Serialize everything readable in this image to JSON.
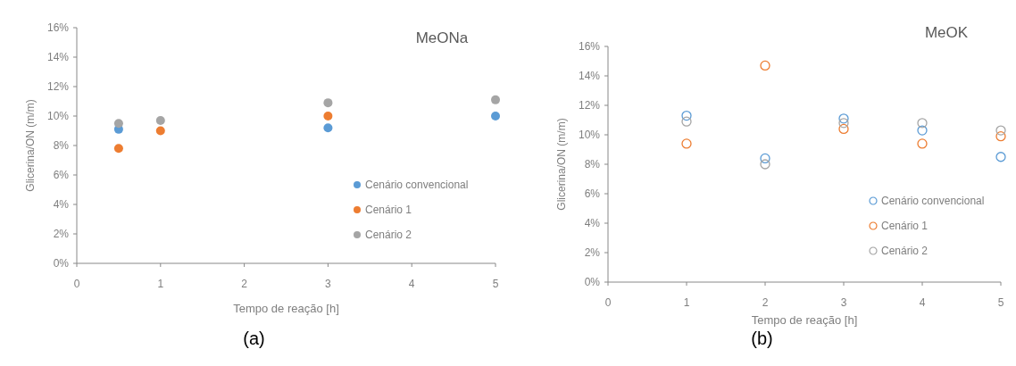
{
  "chart_data": [
    {
      "type": "scatter",
      "title": "MeONa",
      "xlabel": "Tempo de reação [h]",
      "ylabel": "Glicerina/ON (m/m)",
      "annotations": [
        "(a)"
      ],
      "xlim": [
        0,
        5
      ],
      "xticks": [
        0,
        1,
        2,
        3,
        4,
        5
      ],
      "ylim": [
        0,
        16
      ],
      "yticks": [
        {
          "value": 0,
          "label": "0%"
        },
        {
          "value": 2,
          "label": "2%"
        },
        {
          "value": 4,
          "label": "4%"
        },
        {
          "value": 6,
          "label": "6%"
        },
        {
          "value": 8,
          "label": "8%"
        },
        {
          "value": 10,
          "label": "10%"
        },
        {
          "value": 12,
          "label": "12%"
        },
        {
          "value": 14,
          "label": "14%"
        },
        {
          "value": 16,
          "label": "16%"
        }
      ],
      "x": [
        0.5,
        1,
        3,
        5
      ],
      "marker": "circle",
      "legend": "right",
      "series": [
        {
          "name": "Cenário convencional",
          "color": "#5b9bd5",
          "values": [
            9.1,
            null,
            9.2,
            10.0
          ]
        },
        {
          "name": "Cenário 1",
          "color": "#ed7d31",
          "values": [
            7.8,
            9.0,
            10.0,
            null
          ]
        },
        {
          "name": "Cenário 2",
          "color": "#a5a5a5",
          "values": [
            9.5,
            9.7,
            10.9,
            11.1
          ]
        }
      ]
    },
    {
      "type": "scatter",
      "title": "MeOK",
      "xlabel": "Tempo de reação [h]",
      "ylabel": "Glicerina/ON (m/m)",
      "annotations": [
        "(b)"
      ],
      "xlim": [
        0,
        5
      ],
      "xticks": [
        0,
        1,
        2,
        3,
        4,
        5
      ],
      "ylim": [
        0,
        16
      ],
      "yticks": [
        {
          "value": 0,
          "label": "0%"
        },
        {
          "value": 2,
          "label": "2%"
        },
        {
          "value": 4,
          "label": "4%"
        },
        {
          "value": 6,
          "label": "6%"
        },
        {
          "value": 8,
          "label": "8%"
        },
        {
          "value": 10,
          "label": "10%"
        },
        {
          "value": 12,
          "label": "12%"
        },
        {
          "value": 14,
          "label": "14%"
        },
        {
          "value": 16,
          "label": "16%"
        }
      ],
      "x": [
        1,
        2,
        3,
        4,
        5
      ],
      "marker": "circle",
      "legend": "right",
      "series": [
        {
          "name": "Cenário convencional",
          "color": "#5b9bd5",
          "values": [
            11.3,
            8.4,
            11.1,
            10.3,
            8.5
          ]
        },
        {
          "name": "Cenário 1",
          "color": "#ed7d31",
          "values": [
            9.4,
            14.7,
            10.4,
            9.4,
            9.9
          ]
        },
        {
          "name": "Cenário 2",
          "color": "#a5a5a5",
          "values": [
            10.9,
            8.0,
            10.8,
            10.8,
            10.3
          ]
        }
      ]
    }
  ]
}
